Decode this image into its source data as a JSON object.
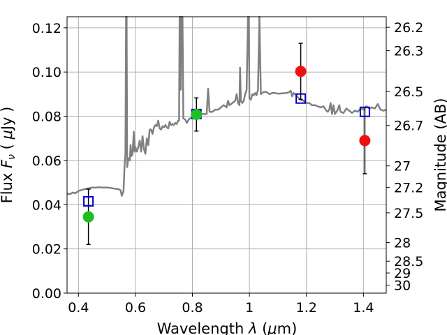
{
  "chart_data": {
    "type": "scatter",
    "title": "",
    "xlabel_main": "Wavelength",
    "xlabel_symbol": "λ",
    "xlabel_unit_prefix": "(",
    "xlabel_unit_mu": "μ",
    "xlabel_unit_rest": "m)",
    "ylabel_main": "Flux",
    "ylabel_symbol_F": "F",
    "ylabel_symbol_sub": "ν",
    "ylabel_unit_prefix": "(",
    "ylabel_unit_mu": "μ",
    "ylabel_unit_rest": "Jy )",
    "ylabel_right": "Magnitude (AB)",
    "xlim": [
      0.36,
      1.48
    ],
    "ylim": [
      0.0,
      0.125
    ],
    "grid": true,
    "x_ticks": [
      {
        "value": 0.4,
        "label": "0.4"
      },
      {
        "value": 0.6,
        "label": "0.6"
      },
      {
        "value": 0.8,
        "label": "0.8"
      },
      {
        "value": 1.0,
        "label": "1"
      },
      {
        "value": 1.2,
        "label": "1.2"
      },
      {
        "value": 1.4,
        "label": "1.4"
      }
    ],
    "y_ticks": [
      {
        "value": 0.0,
        "label": "0.00"
      },
      {
        "value": 0.02,
        "label": "0.02"
      },
      {
        "value": 0.04,
        "label": "0.04"
      },
      {
        "value": 0.06,
        "label": "0.06"
      },
      {
        "value": 0.08,
        "label": "0.08"
      },
      {
        "value": 0.1,
        "label": "0.10"
      },
      {
        "value": 0.12,
        "label": "0.12"
      }
    ],
    "right_ticks": [
      {
        "mag": 26.2,
        "label": "26.2"
      },
      {
        "mag": 26.3,
        "label": "26.3"
      },
      {
        "mag": 26.5,
        "label": "26.5"
      },
      {
        "mag": 26.7,
        "label": "26.7"
      },
      {
        "mag": 27.0,
        "label": "27"
      },
      {
        "mag": 27.2,
        "label": "27.2"
      },
      {
        "mag": 27.5,
        "label": "27.5"
      },
      {
        "mag": 28.0,
        "label": "28"
      },
      {
        "mag": 28.5,
        "label": "28.5"
      },
      {
        "mag": 29.0,
        "label": "29"
      },
      {
        "mag": 30.0,
        "label": "30"
      }
    ],
    "series": [
      {
        "kind": "model_spectrum",
        "color": "#808080",
        "points": [
          [
            0.36,
            0.045
          ],
          [
            0.37,
            0.0448
          ],
          [
            0.38,
            0.0455
          ],
          [
            0.39,
            0.0452
          ],
          [
            0.4,
            0.0462
          ],
          [
            0.41,
            0.0466
          ],
          [
            0.42,
            0.047
          ],
          [
            0.43,
            0.0473
          ],
          [
            0.44,
            0.0475
          ],
          [
            0.45,
            0.0478
          ],
          [
            0.46,
            0.0477
          ],
          [
            0.47,
            0.0479
          ],
          [
            0.48,
            0.0478
          ],
          [
            0.49,
            0.0477
          ],
          [
            0.5,
            0.0478
          ],
          [
            0.51,
            0.0476
          ],
          [
            0.52,
            0.0474
          ],
          [
            0.53,
            0.0472
          ],
          [
            0.54,
            0.0471
          ],
          [
            0.548,
            0.0465
          ],
          [
            0.552,
            0.044
          ],
          [
            0.558,
            0.046
          ],
          [
            0.561,
            0.055
          ],
          [
            0.563,
            0.06
          ],
          [
            0.565,
            0.063
          ],
          [
            0.567,
            0.125
          ],
          [
            0.569,
            0.125
          ],
          [
            0.571,
            0.057
          ],
          [
            0.575,
            0.061
          ],
          [
            0.58,
            0.06
          ],
          [
            0.583,
            0.067
          ],
          [
            0.586,
            0.062
          ],
          [
            0.59,
            0.063
          ],
          [
            0.594,
            0.073
          ],
          [
            0.597,
            0.064
          ],
          [
            0.6,
            0.066
          ],
          [
            0.605,
            0.064
          ],
          [
            0.61,
            0.066
          ],
          [
            0.615,
            0.069
          ],
          [
            0.62,
            0.064
          ],
          [
            0.625,
            0.071
          ],
          [
            0.63,
            0.065
          ],
          [
            0.635,
            0.063
          ],
          [
            0.64,
            0.07
          ],
          [
            0.645,
            0.067
          ],
          [
            0.65,
            0.074
          ],
          [
            0.655,
            0.074
          ],
          [
            0.66,
            0.072
          ],
          [
            0.665,
            0.075
          ],
          [
            0.67,
            0.076
          ],
          [
            0.675,
            0.0755
          ],
          [
            0.68,
            0.078
          ],
          [
            0.685,
            0.0745
          ],
          [
            0.69,
            0.074
          ],
          [
            0.695,
            0.0755
          ],
          [
            0.7,
            0.075
          ],
          [
            0.705,
            0.076
          ],
          [
            0.71,
            0.075
          ],
          [
            0.715,
            0.0745
          ],
          [
            0.72,
            0.0775
          ],
          [
            0.725,
            0.076
          ],
          [
            0.73,
            0.0765
          ],
          [
            0.735,
            0.076
          ],
          [
            0.74,
            0.077
          ],
          [
            0.745,
            0.0765
          ],
          [
            0.75,
            0.078
          ],
          [
            0.753,
            0.078
          ],
          [
            0.755,
            0.125
          ],
          [
            0.757,
            0.125
          ],
          [
            0.759,
            0.092
          ],
          [
            0.762,
            0.125
          ],
          [
            0.765,
            0.125
          ],
          [
            0.768,
            0.079
          ],
          [
            0.775,
            0.0785
          ],
          [
            0.78,
            0.077
          ],
          [
            0.785,
            0.078
          ],
          [
            0.79,
            0.079
          ],
          [
            0.795,
            0.079
          ],
          [
            0.8,
            0.0795
          ],
          [
            0.81,
            0.079
          ],
          [
            0.82,
            0.08
          ],
          [
            0.83,
            0.081
          ],
          [
            0.84,
            0.081
          ],
          [
            0.85,
            0.081
          ],
          [
            0.855,
            0.0925
          ],
          [
            0.86,
            0.082
          ],
          [
            0.87,
            0.082
          ],
          [
            0.88,
            0.083
          ],
          [
            0.89,
            0.083
          ],
          [
            0.9,
            0.084
          ],
          [
            0.91,
            0.085
          ],
          [
            0.92,
            0.084
          ],
          [
            0.925,
            0.087
          ],
          [
            0.93,
            0.085
          ],
          [
            0.94,
            0.086
          ],
          [
            0.95,
            0.087
          ],
          [
            0.955,
            0.09
          ],
          [
            0.96,
            0.086
          ],
          [
            0.965,
            0.085
          ],
          [
            0.967,
            0.102
          ],
          [
            0.97,
            0.087
          ],
          [
            0.975,
            0.086
          ],
          [
            0.98,
            0.087
          ],
          [
            0.985,
            0.09
          ],
          [
            0.99,
            0.092
          ],
          [
            0.995,
            0.125
          ],
          [
            0.998,
            0.125
          ],
          [
            1.0,
            0.088
          ],
          [
            1.005,
            0.0875
          ],
          [
            1.01,
            0.09
          ],
          [
            1.015,
            0.0895
          ],
          [
            1.02,
            0.0905
          ],
          [
            1.025,
            0.0895
          ],
          [
            1.03,
            0.092
          ],
          [
            1.035,
            0.125
          ],
          [
            1.04,
            0.09
          ],
          [
            1.05,
            0.091
          ],
          [
            1.06,
            0.091
          ],
          [
            1.07,
            0.09
          ],
          [
            1.08,
            0.0905
          ],
          [
            1.09,
            0.0905
          ],
          [
            1.1,
            0.0902
          ],
          [
            1.11,
            0.0903
          ],
          [
            1.12,
            0.0904
          ],
          [
            1.13,
            0.0905
          ],
          [
            1.14,
            0.091
          ],
          [
            1.145,
            0.0915
          ],
          [
            1.15,
            0.089
          ],
          [
            1.155,
            0.0905
          ],
          [
            1.16,
            0.09
          ],
          [
            1.165,
            0.0895
          ],
          [
            1.17,
            0.0885
          ],
          [
            1.175,
            0.088
          ],
          [
            1.18,
            0.0875
          ],
          [
            1.19,
            0.087
          ],
          [
            1.2,
            0.086
          ],
          [
            1.21,
            0.086
          ],
          [
            1.22,
            0.085
          ],
          [
            1.23,
            0.085
          ],
          [
            1.24,
            0.0845
          ],
          [
            1.25,
            0.084
          ],
          [
            1.26,
            0.0845
          ],
          [
            1.27,
            0.0825
          ],
          [
            1.275,
            0.082
          ],
          [
            1.28,
            0.083
          ],
          [
            1.285,
            0.086
          ],
          [
            1.29,
            0.081
          ],
          [
            1.295,
            0.085
          ],
          [
            1.3,
            0.081
          ],
          [
            1.31,
            0.083
          ],
          [
            1.315,
            0.085
          ],
          [
            1.32,
            0.082
          ],
          [
            1.33,
            0.0815
          ],
          [
            1.34,
            0.0835
          ],
          [
            1.345,
            0.083
          ],
          [
            1.35,
            0.0825
          ],
          [
            1.36,
            0.0815
          ],
          [
            1.37,
            0.0825
          ],
          [
            1.38,
            0.082
          ],
          [
            1.39,
            0.0835
          ],
          [
            1.4,
            0.083
          ],
          [
            1.41,
            0.0845
          ],
          [
            1.42,
            0.0835
          ],
          [
            1.43,
            0.084
          ],
          [
            1.44,
            0.0835
          ],
          [
            1.45,
            0.0855
          ],
          [
            1.46,
            0.083
          ],
          [
            1.47,
            0.0825
          ],
          [
            1.48,
            0.083
          ]
        ]
      },
      {
        "kind": "model_photometry",
        "marker": "open-square",
        "color": "#0000cc",
        "points": [
          {
            "x": 0.435,
            "y": 0.0415
          },
          {
            "x": 0.814,
            "y": 0.081
          },
          {
            "x": 1.18,
            "y": 0.088
          },
          {
            "x": 1.405,
            "y": 0.082
          }
        ]
      },
      {
        "kind": "observed_detection",
        "marker": "filled-circle",
        "color": "#1fbf1f",
        "points": [
          {
            "x": 0.435,
            "y": 0.0345,
            "yerr": 0.0125
          },
          {
            "x": 0.814,
            "y": 0.0808,
            "yerr": 0.0075
          }
        ]
      },
      {
        "kind": "observed_other",
        "marker": "filled-circle",
        "color": "#ee1111",
        "points": [
          {
            "x": 1.18,
            "y": 0.1003,
            "yerr": 0.0127
          },
          {
            "x": 1.405,
            "y": 0.069,
            "yerr": 0.015
          }
        ]
      }
    ]
  }
}
